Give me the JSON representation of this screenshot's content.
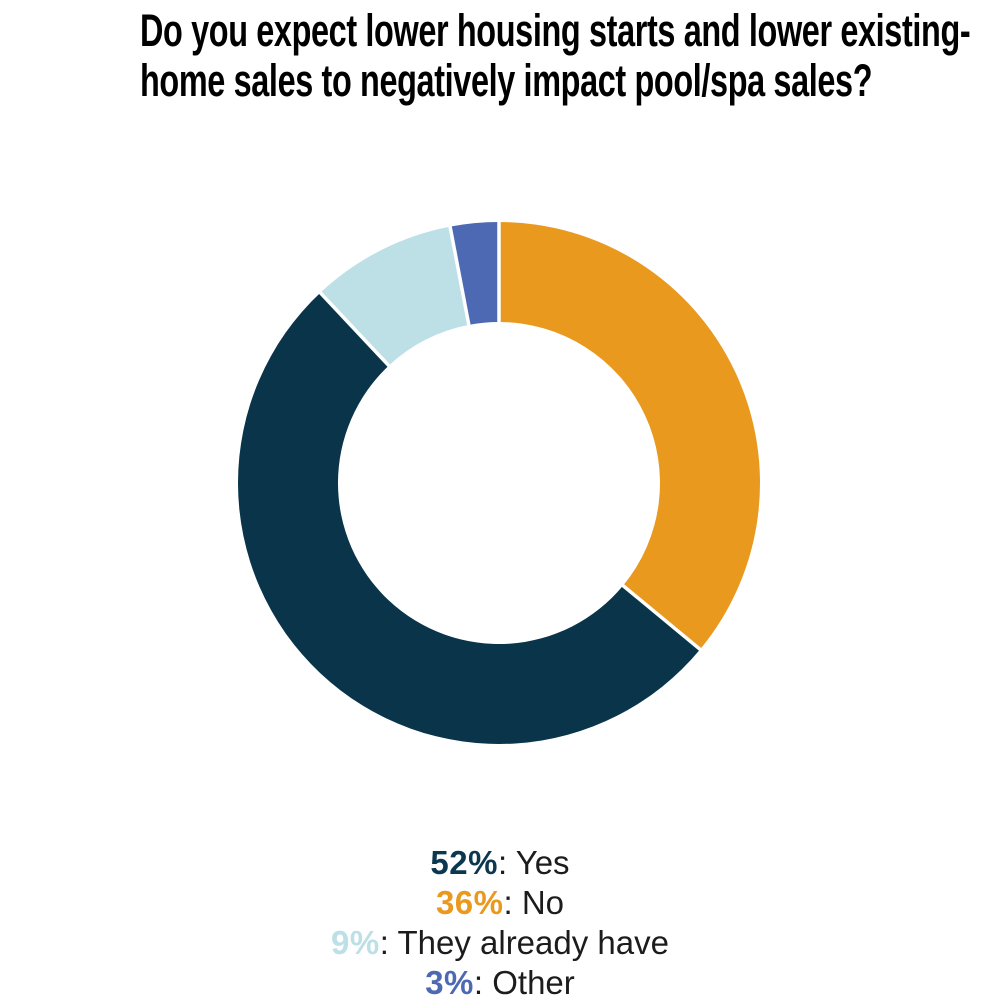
{
  "title": {
    "line1": "Do you expect lower housing starts and lower existing-",
    "line2": "home sales to negatively impact pool/spa sales?",
    "color": "#000000"
  },
  "chart_data": {
    "type": "pie",
    "variant": "donut",
    "title": "Do you expect lower housing starts and lower existing-home sales to negatively impact pool/spa sales?",
    "unit": "%",
    "start_angle": "top",
    "direction": "clockwise",
    "slices": [
      {
        "label": "No",
        "value": 36,
        "color": "#E8991E"
      },
      {
        "label": "Yes",
        "value": 52,
        "color": "#093449"
      },
      {
        "label": "They already have",
        "value": 9,
        "color": "#BDE0E6"
      },
      {
        "label": "Other",
        "value": 3,
        "color": "#4E69B3"
      }
    ],
    "separator_color": "#FFFFFF",
    "legend": [
      {
        "pct": "52%",
        "rest": ": Yes",
        "color": "#0B374F"
      },
      {
        "pct": "36%",
        "rest": ": No",
        "color": "#E8991E"
      },
      {
        "pct": "9%",
        "rest": ": They already have",
        "color": "#BDE0E6"
      },
      {
        "pct": "3%",
        "rest": ": Other",
        "color": "#4E69B3"
      }
    ]
  }
}
